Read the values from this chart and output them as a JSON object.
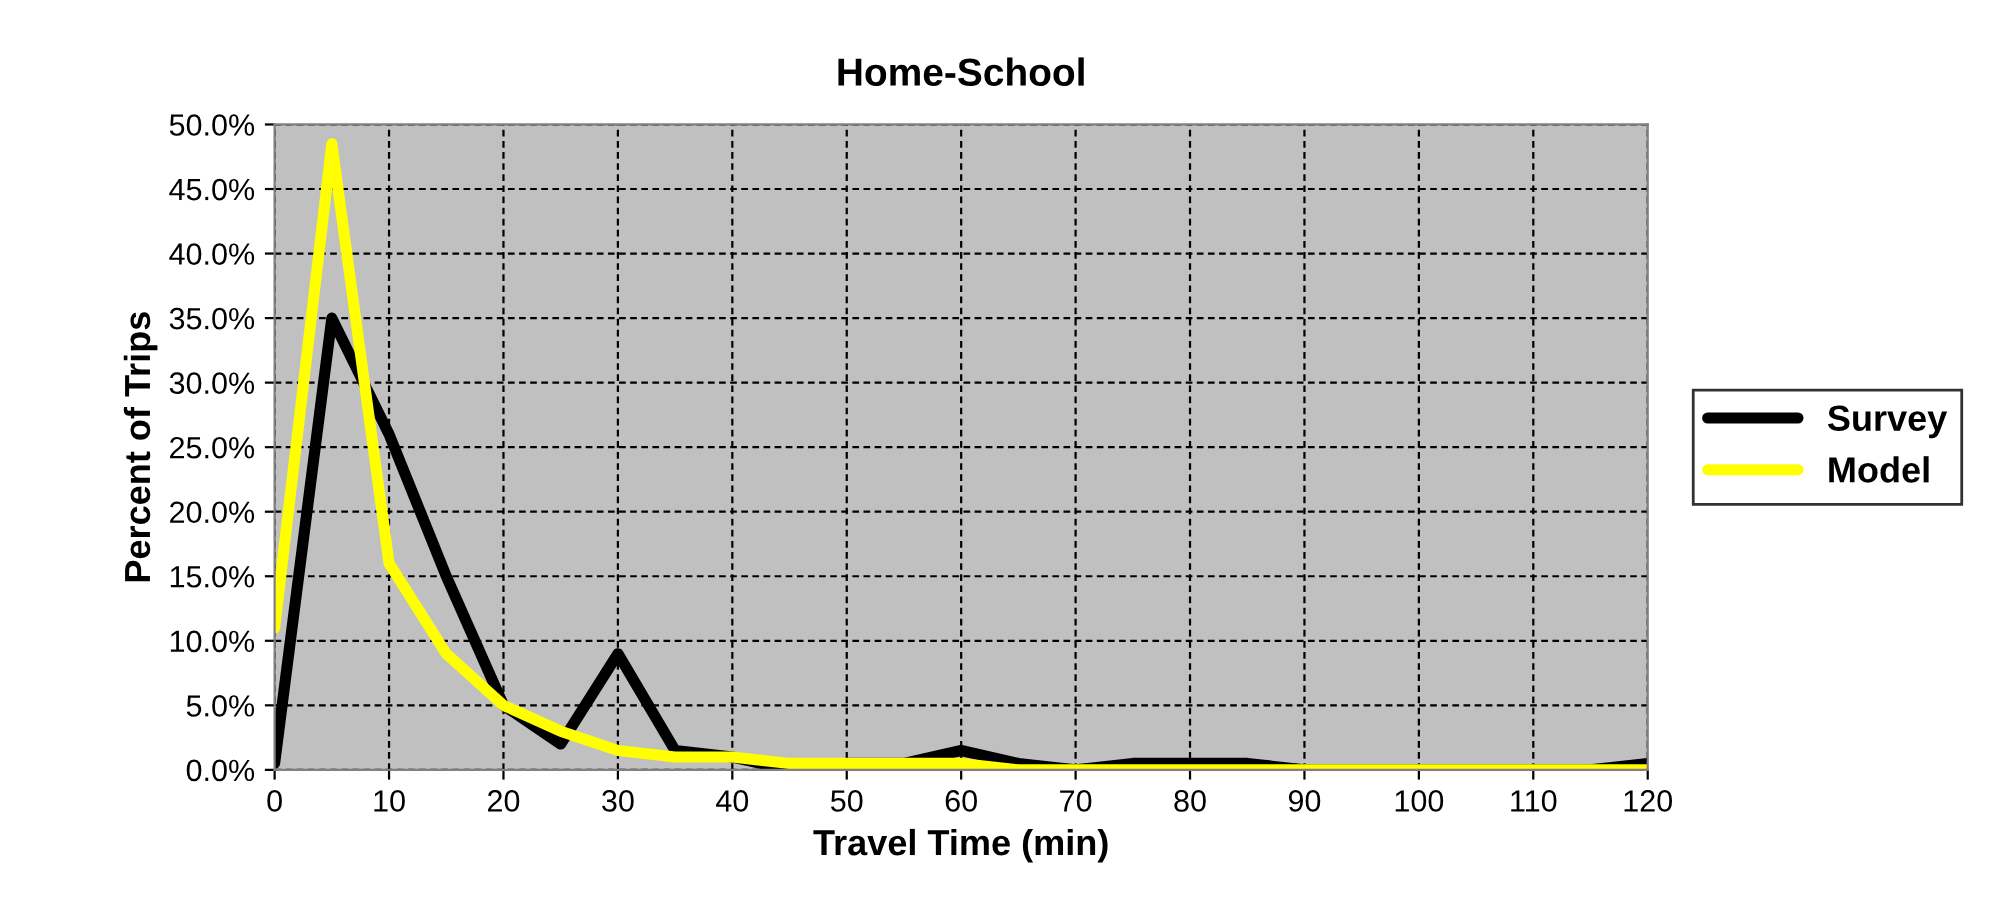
{
  "chart_data": {
    "type": "line",
    "title": "Home-School",
    "xlabel": "Travel Time (min)",
    "ylabel": "Percent of Trips",
    "x": [
      0,
      5,
      10,
      15,
      20,
      25,
      30,
      35,
      40,
      45,
      50,
      55,
      60,
      65,
      70,
      75,
      80,
      85,
      90,
      95,
      100,
      105,
      110,
      115,
      120
    ],
    "series": [
      {
        "name": "Survey",
        "color": "#000000",
        "values": [
          0.5,
          35,
          26,
          15,
          5,
          2,
          9,
          1.5,
          1,
          0,
          0.5,
          0.5,
          1.5,
          0.5,
          0,
          0.5,
          0.5,
          0.5,
          0,
          0,
          0,
          0,
          0,
          0,
          0.5
        ]
      },
      {
        "name": "Model",
        "color": "#ffff00",
        "values": [
          11,
          48.5,
          16,
          9,
          5,
          3,
          1.5,
          1,
          1,
          0.5,
          0.5,
          0.5,
          0.5,
          0,
          0,
          0,
          0,
          0,
          0,
          0,
          0,
          0,
          0,
          0,
          0
        ]
      }
    ],
    "xlim": [
      0,
      120
    ],
    "xticks": [
      0,
      10,
      20,
      30,
      40,
      50,
      60,
      70,
      80,
      90,
      100,
      110,
      120
    ],
    "ylim": [
      0,
      50
    ],
    "yticks": [
      {
        "value": 0,
        "label": "0.0%"
      },
      {
        "value": 5,
        "label": "5.0%"
      },
      {
        "value": 10,
        "label": "10.0%"
      },
      {
        "value": 15,
        "label": "15.0%"
      },
      {
        "value": 20,
        "label": "20.0%"
      },
      {
        "value": 25,
        "label": "25.0%"
      },
      {
        "value": 30,
        "label": "30.0%"
      },
      {
        "value": 35,
        "label": "35.0%"
      },
      {
        "value": 40,
        "label": "40.0%"
      },
      {
        "value": 45,
        "label": "45.0%"
      },
      {
        "value": 50,
        "label": "50.0%"
      }
    ],
    "grid": true,
    "legend": "right",
    "marker": "none",
    "line_style": "solid"
  }
}
